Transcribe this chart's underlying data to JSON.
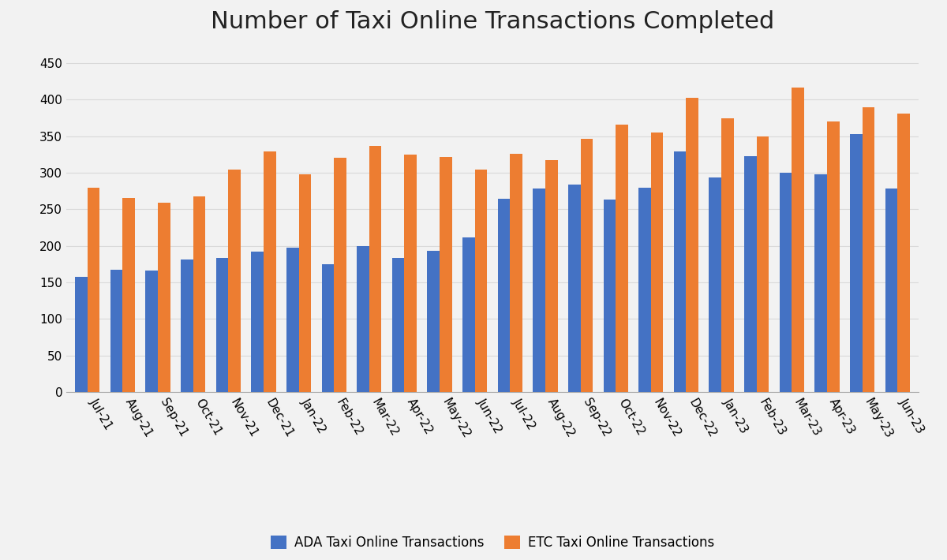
{
  "title": "Number of Taxi Online Transactions Completed",
  "categories": [
    "Jul-21",
    "Aug-21",
    "Sep-21",
    "Oct-21",
    "Nov-21",
    "Dec-21",
    "Jan-22",
    "Feb-22",
    "Mar-22",
    "Apr-22",
    "May-22",
    "Jun-22",
    "Jul-22",
    "Aug-22",
    "Sep-22",
    "Oct-22",
    "Nov-22",
    "Dec-22",
    "Jan-23",
    "Feb-23",
    "Mar-23",
    "Apr-23",
    "May-23",
    "Jun-23"
  ],
  "ada_values": [
    158,
    167,
    166,
    181,
    183,
    192,
    198,
    175,
    200,
    183,
    193,
    211,
    264,
    278,
    284,
    263,
    279,
    329,
    294,
    323,
    300,
    298,
    353,
    278
  ],
  "etc_values": [
    280,
    265,
    259,
    268,
    304,
    329,
    298,
    320,
    337,
    325,
    322,
    304,
    326,
    317,
    346,
    366,
    355,
    402,
    374,
    350,
    416,
    370,
    389,
    381
  ],
  "ada_color": "#4472C4",
  "etc_color": "#ED7D31",
  "ada_label": "ADA Taxi Online Transactions",
  "etc_label": "ETC Taxi Online Transactions",
  "ylim": [
    0,
    475
  ],
  "yticks": [
    0,
    50,
    100,
    150,
    200,
    250,
    300,
    350,
    400,
    450
  ],
  "title_fontsize": 22,
  "legend_fontsize": 12,
  "tick_fontsize": 11,
  "background_color": "#f2f2f2",
  "grid_color": "#d9d9d9"
}
